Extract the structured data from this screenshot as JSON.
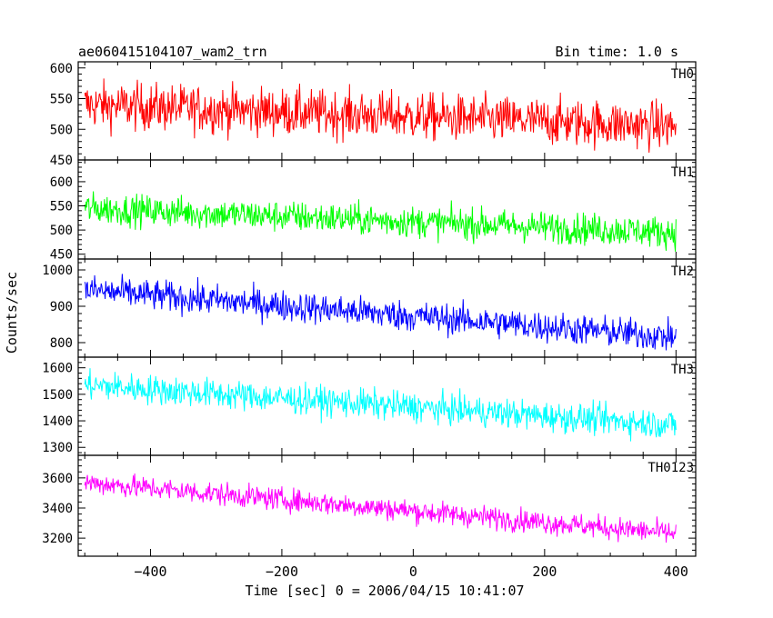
{
  "header": {
    "title": "ae060415104107_wam2_trn",
    "bin_time": "Bin time: 1.0 s"
  },
  "chart_data": {
    "type": "line",
    "x_label": "Time [sec] 0 = 2006/04/15 10:41:07",
    "y_label": "Counts/sec",
    "xlim": [
      -510,
      430
    ],
    "x_ticks": [
      -400,
      -200,
      0,
      200,
      400
    ],
    "x_tick_labels": [
      "−400",
      "−200",
      "0",
      "200",
      "400"
    ],
    "x_range": [
      -500,
      400
    ],
    "bin_time_s": 1.0,
    "panels": [
      {
        "name": "TH0",
        "color": "#ff0000",
        "ylim": [
          450,
          610
        ],
        "y_ticks": [
          450,
          500,
          550,
          600
        ],
        "trend_start": 540,
        "trend_end": 505,
        "noise": 38
      },
      {
        "name": "TH1",
        "color": "#00ff00",
        "ylim": [
          440,
          645
        ],
        "y_ticks": [
          450,
          500,
          550,
          600
        ],
        "trend_start": 545,
        "trend_end": 495,
        "noise": 32
      },
      {
        "name": "TH2",
        "color": "#0000ff",
        "ylim": [
          760,
          1030
        ],
        "y_ticks": [
          800,
          900,
          1000
        ],
        "trend_start": 945,
        "trend_end": 815,
        "noise": 42
      },
      {
        "name": "TH3",
        "color": "#00ffff",
        "ylim": [
          1270,
          1640
        ],
        "y_ticks": [
          1300,
          1400,
          1500,
          1600
        ],
        "trend_start": 1535,
        "trend_end": 1385,
        "noise": 55
      },
      {
        "name": "TH0123",
        "color": "#ff00ff",
        "ylim": [
          3080,
          3750
        ],
        "y_ticks": [
          3200,
          3400,
          3600
        ],
        "trend_start": 3570,
        "trend_end": 3230,
        "noise": 75
      }
    ]
  }
}
